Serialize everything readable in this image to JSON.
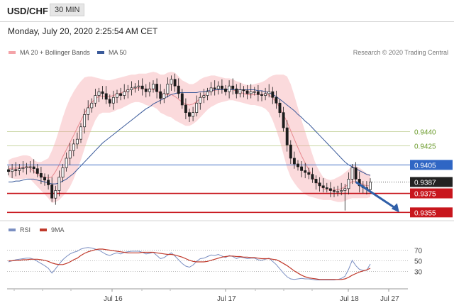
{
  "header": {
    "symbol": "USD/CHF",
    "timeframe": "30 MIN"
  },
  "timestamp": "Monday, July 20, 2020 2:25:54 AM CET",
  "legend": {
    "bollinger": "MA 20 + Bollinger Bands",
    "ma50": "MA 50"
  },
  "credit": "Research © 2020 Trading Central",
  "rsi_legend": {
    "rsi": "RSI",
    "ma": "9MA"
  },
  "colors": {
    "bollinger": "#f4a3a8",
    "ma50": "#3a5a9a",
    "candle": "#1c1c1c",
    "support": "#c8161d",
    "resistance_line": "#4472c4",
    "price_box": "#222222",
    "rsi": "#7b8fc2",
    "rsi_ma": "#c0392b"
  },
  "chart_data": [
    {
      "type": "candlestick",
      "title": "",
      "x_ticks": [
        "Jul 16",
        "Jul 17",
        "Jul 18",
        "Jul 27"
      ],
      "y_ticks": [
        "0.9440",
        "0.9425"
      ],
      "ylim": [
        0.935,
        0.9515
      ],
      "levels": [
        {
          "value": 0.9405,
          "label": "0.9405",
          "style": "resistance"
        },
        {
          "value": 0.9387,
          "label": "0.9387",
          "style": "current"
        },
        {
          "value": 0.9375,
          "label": "0.9375",
          "style": "support"
        },
        {
          "value": 0.9355,
          "label": "0.9355",
          "style": "support"
        }
      ],
      "forecast_arrow": {
        "from": [
          96,
          0.9387
        ],
        "to": [
          108,
          0.9355
        ]
      },
      "closes": [
        0.9398,
        0.94,
        0.9399,
        0.9401,
        0.9402,
        0.9403,
        0.9403,
        0.9401,
        0.9396,
        0.9392,
        0.9389,
        0.9384,
        0.937,
        0.9378,
        0.9392,
        0.9402,
        0.9412,
        0.942,
        0.9427,
        0.9432,
        0.9445,
        0.9458,
        0.9465,
        0.947,
        0.9478,
        0.9482,
        0.948,
        0.9474,
        0.947,
        0.9476,
        0.948,
        0.9478,
        0.9482,
        0.9484,
        0.9486,
        0.9487,
        0.9488,
        0.9485,
        0.9482,
        0.9485,
        0.949,
        0.9482,
        0.9475,
        0.948,
        0.949,
        0.9495,
        0.9488,
        0.948,
        0.9468,
        0.946,
        0.9456,
        0.946,
        0.947,
        0.9476,
        0.9478,
        0.9482,
        0.9486,
        0.9485,
        0.9488,
        0.9485,
        0.9482,
        0.9488,
        0.9485,
        0.948,
        0.9484,
        0.9483,
        0.948,
        0.9482,
        0.9482,
        0.9479,
        0.9478,
        0.948,
        0.9482,
        0.9476,
        0.947,
        0.946,
        0.9444,
        0.9426,
        0.9412,
        0.9406,
        0.9403,
        0.9399,
        0.9397,
        0.9395,
        0.939,
        0.9386,
        0.9383,
        0.9381,
        0.938,
        0.9378,
        0.9377,
        0.9377,
        0.9378,
        0.938,
        0.939,
        0.9402,
        0.939,
        0.9383,
        0.9381,
        0.9379,
        0.9387
      ],
      "bb_upper": [
        0.941,
        0.9412,
        0.9413,
        0.9414,
        0.9415,
        0.9415,
        0.9414,
        0.941,
        0.9408,
        0.9408,
        0.941,
        0.9412,
        0.942,
        0.943,
        0.9442,
        0.9455,
        0.9466,
        0.9475,
        0.9482,
        0.9488,
        0.9493,
        0.9497,
        0.9498,
        0.9498,
        0.9497,
        0.9496,
        0.9495,
        0.9494,
        0.9494,
        0.9495,
        0.9496,
        0.9497,
        0.9498,
        0.9499,
        0.95,
        0.95,
        0.9501,
        0.9501,
        0.9501,
        0.9502,
        0.9503,
        0.9502,
        0.95,
        0.95,
        0.9502,
        0.9503,
        0.9502,
        0.9498,
        0.9494,
        0.9492,
        0.949,
        0.949,
        0.9492,
        0.9495,
        0.9497,
        0.9498,
        0.9499,
        0.9499,
        0.9498,
        0.9497,
        0.9496,
        0.9496,
        0.9495,
        0.9493,
        0.9492,
        0.949,
        0.9489,
        0.9489,
        0.949,
        0.9491,
        0.9492,
        0.9494,
        0.9497,
        0.9499,
        0.95,
        0.95,
        0.95,
        0.9498,
        0.949,
        0.9478,
        0.9465,
        0.9452,
        0.944,
        0.9428,
        0.9416,
        0.9405,
        0.9398,
        0.9392,
        0.939,
        0.9389,
        0.939,
        0.9392,
        0.9394,
        0.9397,
        0.94,
        0.9405,
        0.9404,
        0.9402,
        0.9399,
        0.9396,
        0.9395
      ],
      "bb_lower": [
        0.9392,
        0.9391,
        0.939,
        0.939,
        0.939,
        0.9391,
        0.939,
        0.9386,
        0.9382,
        0.9378,
        0.9374,
        0.937,
        0.9365,
        0.9366,
        0.9368,
        0.9372,
        0.9376,
        0.9382,
        0.939,
        0.94,
        0.941,
        0.9422,
        0.9433,
        0.9443,
        0.9452,
        0.9458,
        0.946,
        0.946,
        0.946,
        0.9461,
        0.9463,
        0.9464,
        0.9466,
        0.9468,
        0.947,
        0.9471,
        0.9471,
        0.947,
        0.9468,
        0.9467,
        0.9466,
        0.9464,
        0.946,
        0.9458,
        0.9456,
        0.9455,
        0.9452,
        0.945,
        0.9448,
        0.9446,
        0.9446,
        0.9448,
        0.9451,
        0.9455,
        0.9459,
        0.9463,
        0.9466,
        0.9468,
        0.947,
        0.9471,
        0.9472,
        0.9473,
        0.9473,
        0.9472,
        0.9471,
        0.947,
        0.9469,
        0.9468,
        0.9468,
        0.9467,
        0.9466,
        0.9464,
        0.946,
        0.9452,
        0.9442,
        0.943,
        0.9416,
        0.9402,
        0.9392,
        0.9386,
        0.9381,
        0.9377,
        0.9374,
        0.9372,
        0.9371,
        0.937,
        0.9369,
        0.9368,
        0.9368,
        0.9368,
        0.9367,
        0.9366,
        0.9366,
        0.9367,
        0.9369,
        0.937,
        0.937,
        0.937,
        0.937,
        0.937,
        0.9371
      ],
      "ma50": [
        0.9387,
        0.9387,
        0.9388,
        0.9388,
        0.9389,
        0.939,
        0.939,
        0.939,
        0.9389,
        0.9388,
        0.9387,
        0.9386,
        0.9385,
        0.9385,
        0.9386,
        0.9388,
        0.939,
        0.9393,
        0.9396,
        0.94,
        0.9404,
        0.9408,
        0.9412,
        0.9416,
        0.942,
        0.9424,
        0.9428,
        0.9431,
        0.9434,
        0.9437,
        0.944,
        0.9443,
        0.9446,
        0.9449,
        0.9452,
        0.9455,
        0.9458,
        0.9461,
        0.9464,
        0.9466,
        0.9469,
        0.9471,
        0.9473,
        0.9475,
        0.9477,
        0.9479,
        0.948,
        0.9481,
        0.9481,
        0.9481,
        0.9481,
        0.9481,
        0.9481,
        0.9482,
        0.9482,
        0.9483,
        0.9483,
        0.9484,
        0.9484,
        0.9484,
        0.9484,
        0.9484,
        0.9484,
        0.9484,
        0.9484,
        0.9484,
        0.9484,
        0.9484,
        0.9484,
        0.9483,
        0.9483,
        0.9482,
        0.9481,
        0.9479,
        0.9477,
        0.9474,
        0.9471,
        0.9468,
        0.9465,
        0.9462,
        0.9458,
        0.9455,
        0.9451,
        0.9448,
        0.9444,
        0.944,
        0.9436,
        0.9432,
        0.9428,
        0.9424,
        0.942,
        0.9416,
        0.9412,
        0.9408,
        0.9405,
        0.9403,
        0.9401,
        0.9399,
        0.9397,
        0.9395,
        0.9394
      ],
      "special_wicks": [
        {
          "index": 93,
          "low": 0.9357
        }
      ]
    },
    {
      "type": "line",
      "title": "",
      "y_ticks": [
        "70",
        "50",
        "30"
      ],
      "ylim": [
        0,
        100
      ],
      "series": [
        {
          "name": "RSI",
          "values": [
            48,
            50,
            52,
            53,
            54,
            55,
            55,
            53,
            49,
            45,
            41,
            36,
            27,
            35,
            44,
            52,
            58,
            63,
            66,
            68,
            72,
            74,
            75,
            74,
            72,
            70,
            66,
            62,
            60,
            63,
            65,
            63,
            66,
            67,
            68,
            68,
            68,
            66,
            63,
            64,
            66,
            60,
            54,
            56,
            61,
            65,
            59,
            52,
            45,
            40,
            38,
            42,
            49,
            54,
            55,
            58,
            61,
            60,
            62,
            59,
            56,
            60,
            58,
            54,
            57,
            56,
            54,
            55,
            55,
            52,
            51,
            53,
            55,
            49,
            43,
            35,
            27,
            20,
            16,
            15,
            16,
            17,
            16,
            16,
            15,
            14,
            14,
            14,
            14,
            14,
            14,
            15,
            17,
            21,
            34,
            51,
            41,
            34,
            32,
            32,
            44
          ]
        },
        {
          "name": "9MA",
          "values": [
            50,
            50,
            51,
            51,
            52,
            52,
            53,
            53,
            53,
            52,
            51,
            49,
            46,
            44,
            43,
            43,
            45,
            48,
            52,
            55,
            60,
            64,
            67,
            69,
            71,
            72,
            72,
            71,
            70,
            69,
            68,
            67,
            66,
            65,
            65,
            65,
            65,
            66,
            66,
            66,
            66,
            65,
            64,
            63,
            62,
            62,
            61,
            59,
            57,
            54,
            51,
            49,
            48,
            48,
            48,
            49,
            51,
            53,
            55,
            57,
            58,
            59,
            59,
            58,
            58,
            57,
            57,
            56,
            56,
            55,
            54,
            54,
            54,
            53,
            52,
            49,
            45,
            41,
            36,
            31,
            27,
            23,
            20,
            18,
            17,
            16,
            15,
            15,
            15,
            15,
            15,
            15,
            15,
            16,
            19,
            23,
            26,
            29,
            31,
            33,
            36
          ]
        }
      ],
      "x_ticks": [
        "Jul 16",
        "Jul 17",
        "Jul 18",
        "Jul 27"
      ]
    }
  ]
}
